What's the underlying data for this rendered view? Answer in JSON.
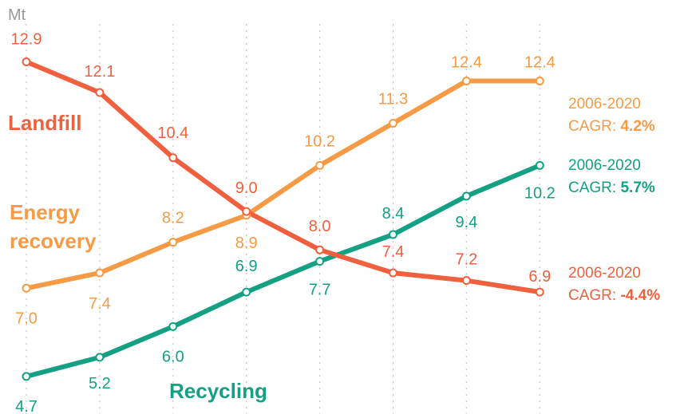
{
  "chart_data": {
    "type": "line",
    "unit_label": "Mt",
    "x": [
      "",
      "",
      "",
      "",
      "",
      "",
      "",
      ""
    ],
    "ylim": [
      4,
      13.5
    ],
    "grid": "vertical dotted",
    "series": [
      {
        "key": "landfill",
        "name": "Landfill",
        "color": "#f0603e",
        "values": [
          12.9,
          12.1,
          10.4,
          9.0,
          8.0,
          7.4,
          7.2,
          6.9
        ],
        "value_labels": [
          "12.9",
          "12.1",
          "10.4",
          "9.0",
          "8.0",
          "7.4",
          "7.2",
          "6.9"
        ],
        "cagr_period": "2006-2020",
        "cagr_label": "CAGR:",
        "cagr_value": "-4.4%"
      },
      {
        "key": "energy",
        "name": "Energy recovery",
        "name_lines": [
          "Energy",
          "recovery"
        ],
        "color": "#f79a45",
        "values": [
          7.0,
          7.4,
          8.2,
          8.9,
          10.2,
          11.3,
          12.4,
          12.4
        ],
        "value_labels": [
          "7.0",
          "7.4",
          "8.2",
          "8.9",
          "10.2",
          "11.3",
          "12.4",
          "12.4"
        ],
        "cagr_period": "2006-2020",
        "cagr_label": "CAGR:",
        "cagr_value": "4.2%"
      },
      {
        "key": "recycling",
        "name": "Recycling",
        "color": "#14a083",
        "values": [
          4.7,
          5.2,
          6.0,
          6.9,
          7.7,
          8.4,
          9.4,
          10.2
        ],
        "value_labels": [
          "4.7",
          "5.2",
          "6.0",
          "6.9",
          "7.7",
          "8.4",
          "9.4",
          "10.2"
        ],
        "cagr_period": "2006-2020",
        "cagr_label": "CAGR:",
        "cagr_value": "5.7%"
      }
    ]
  }
}
